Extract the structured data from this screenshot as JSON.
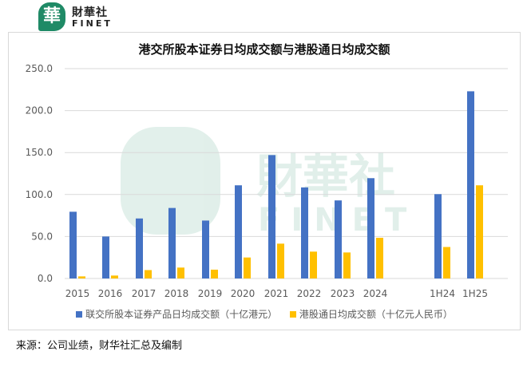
{
  "logo": {
    "badge": "華",
    "cn": "財華社",
    "en": "FINET"
  },
  "watermark": {
    "cn": "財華社",
    "en": "FINET"
  },
  "chart_data": {
    "type": "bar",
    "title": "港交所股本证券日均成交额与港股通日均成交额",
    "categories": [
      "2015",
      "2016",
      "2017",
      "2018",
      "2019",
      "2020",
      "2021",
      "2022",
      "2023",
      "2024",
      "1H24",
      "1H25"
    ],
    "series": [
      {
        "name": "联交所股本证券产品日均成交额（十亿港元）",
        "color": "#4472c4",
        "values": [
          79.5,
          50,
          71.5,
          84,
          69,
          111,
          147,
          108.5,
          93,
          119.5,
          100.5,
          223
        ]
      },
      {
        "name": "港股通日均成交额（十亿元人民币）",
        "color": "#ffc000",
        "values": [
          2.5,
          3.5,
          10,
          13,
          10.5,
          25,
          41.5,
          32,
          31,
          48.5,
          37.5,
          111
        ]
      }
    ],
    "ylim": [
      0,
      250
    ],
    "yticks": [
      "0.0",
      "50.0",
      "100.0",
      "150.0",
      "200.0",
      "250.0"
    ],
    "grid": true,
    "legend": "bottom"
  },
  "source": "来源：公司业绩，财华社汇总及编制"
}
